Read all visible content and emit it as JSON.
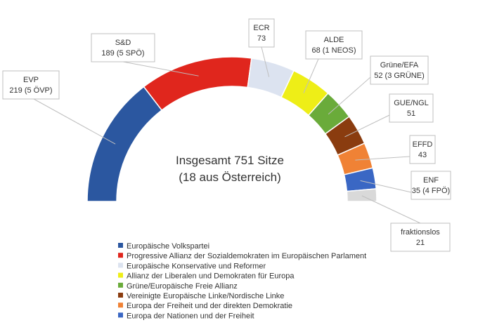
{
  "chart_data": {
    "type": "pie",
    "subtype": "semicircle-parliament",
    "total_label_line1": "Insgesamt 751 Sitze",
    "total_label_line2": "(18 aus Österreich)",
    "total_seats": 751,
    "series": [
      {
        "key": "evp",
        "label_line1": "EVP",
        "label_line2": "219 (5 ÖVP)",
        "value": 219,
        "color": "#2b57a0",
        "legend": "Europäische Volkspartei"
      },
      {
        "key": "sd",
        "label_line1": "S&D",
        "label_line2": "189 (5 SPÖ)",
        "value": 189,
        "color": "#e0261d",
        "legend": "Progressive Allianz der Sozialdemokraten im Europäischen Parlament"
      },
      {
        "key": "ecr",
        "label_line1": "ECR",
        "label_line2": "73",
        "value": 73,
        "color": "#dce3f0",
        "legend": "Europäische Konservative und Reformer"
      },
      {
        "key": "alde",
        "label_line1": "ALDE",
        "label_line2": "68 (1 NEOS)",
        "value": 68,
        "color": "#eeee17",
        "legend": "Allianz der Liberalen und Demokraten für Europa"
      },
      {
        "key": "greens",
        "label_line1": "Grüne/EFA",
        "label_line2": "52 (3 GRÜNE)",
        "value": 52,
        "color": "#6aab3a",
        "legend": "Grüne/Europäische Freie Allianz"
      },
      {
        "key": "gue",
        "label_line1": "GUE/NGL",
        "label_line2": "51",
        "value": 51,
        "color": "#8a3c0f",
        "legend": "Vereinigte Europäische Linke/Nordische Linke"
      },
      {
        "key": "effd",
        "label_line1": "EFFD",
        "label_line2": "43",
        "value": 43,
        "color": "#f08235",
        "legend": "Europa der Freiheit und der direkten Demokratie"
      },
      {
        "key": "enf",
        "label_line1": "ENF",
        "label_line2": "35 (4 FPÖ)",
        "value": 35,
        "color": "#3a67c4",
        "legend": "Europa der Nationen und der Freiheit"
      },
      {
        "key": "ni",
        "label_line1": "fraktionslos",
        "label_line2": "21",
        "value": 21,
        "color": "#d9d9d9",
        "legend": null
      }
    ]
  }
}
